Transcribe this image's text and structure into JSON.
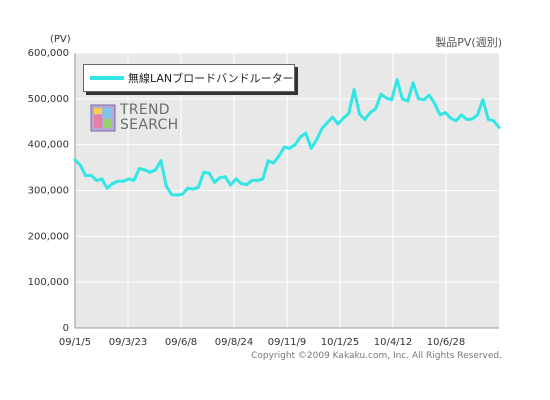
{
  "header": {
    "unit": "(PV)",
    "period": "製品PV(週別)"
  },
  "legend": {
    "label": "無線LANブロードバンドルーター"
  },
  "logo": {
    "line1": "TREND",
    "line2": "SEARCH"
  },
  "footer": {
    "copyright": "Copyright ©2009 Kakaku.com, Inc. All Rights Reserved."
  },
  "colors": {
    "series": "#33e6e6",
    "plot_bg": "#e8e8e8",
    "grid": "#ffffff"
  },
  "chart_data": {
    "type": "line",
    "title": "",
    "xlabel": "",
    "ylabel": "(PV)",
    "ylim": [
      0,
      600000
    ],
    "yticks": [
      0,
      100000,
      200000,
      300000,
      400000,
      500000,
      600000
    ],
    "ytick_labels": [
      "0",
      "100,000",
      "200,000",
      "300,000",
      "400,000",
      "500,000",
      "600,000"
    ],
    "xtick_labels": [
      "09/1/5",
      "09/3/23",
      "09/6/8",
      "09/8/24",
      "09/11/9",
      "10/1/25",
      "10/4/12",
      "10/6/28"
    ],
    "grid": true,
    "legend_position": "top-left",
    "series": [
      {
        "name": "無線LANブロードバンドルーター",
        "x": [
          "09/1/5",
          "09/1/12",
          "09/1/19",
          "09/1/26",
          "09/2/2",
          "09/2/9",
          "09/2/16",
          "09/2/23",
          "09/3/2",
          "09/3/9",
          "09/3/16",
          "09/3/23",
          "09/3/30",
          "09/4/6",
          "09/4/13",
          "09/4/20",
          "09/4/27",
          "09/5/4",
          "09/5/11",
          "09/5/18",
          "09/5/25",
          "09/6/1",
          "09/6/8",
          "09/6/15",
          "09/6/22",
          "09/6/29",
          "09/7/6",
          "09/7/13",
          "09/7/20",
          "09/7/27",
          "09/8/3",
          "09/8/10",
          "09/8/17",
          "09/8/24",
          "09/8/31",
          "09/9/7",
          "09/9/14",
          "09/9/21",
          "09/9/28",
          "09/10/5",
          "09/10/12",
          "09/10/19",
          "09/10/26",
          "09/11/2",
          "09/11/9",
          "09/11/16",
          "09/11/23",
          "09/11/30",
          "09/12/7",
          "09/12/14",
          "09/12/21",
          "09/12/28",
          "10/1/4",
          "10/1/11",
          "10/1/18",
          "10/1/25",
          "10/2/1",
          "10/2/8",
          "10/2/15",
          "10/2/22",
          "10/3/1",
          "10/3/8",
          "10/3/15",
          "10/3/22",
          "10/3/29",
          "10/4/5",
          "10/4/12",
          "10/4/19",
          "10/4/26",
          "10/5/3",
          "10/5/10",
          "10/5/17",
          "10/5/24",
          "10/5/31",
          "10/6/7",
          "10/6/14",
          "10/6/21",
          "10/6/28",
          "10/7/5",
          "10/7/12"
        ],
        "values": [
          367000,
          355000,
          332000,
          333000,
          322000,
          325000,
          305000,
          315000,
          320000,
          320000,
          325000,
          322000,
          348000,
          345000,
          340000,
          345000,
          365000,
          310000,
          291000,
          290000,
          292000,
          305000,
          303000,
          307000,
          340000,
          338000,
          318000,
          328000,
          330000,
          312000,
          325000,
          315000,
          313000,
          322000,
          322000,
          325000,
          365000,
          360000,
          375000,
          395000,
          392000,
          400000,
          417000,
          425000,
          392000,
          410000,
          435000,
          448000,
          460000,
          445000,
          458000,
          468000,
          520000,
          467000,
          455000,
          470000,
          478000,
          510000,
          502000,
          498000,
          542000,
          500000,
          495000,
          535000,
          500000,
          498000,
          508000,
          490000,
          465000,
          470000,
          458000,
          452000,
          465000,
          455000,
          456000,
          465000,
          498000,
          455000,
          452000,
          438000
        ]
      }
    ]
  }
}
